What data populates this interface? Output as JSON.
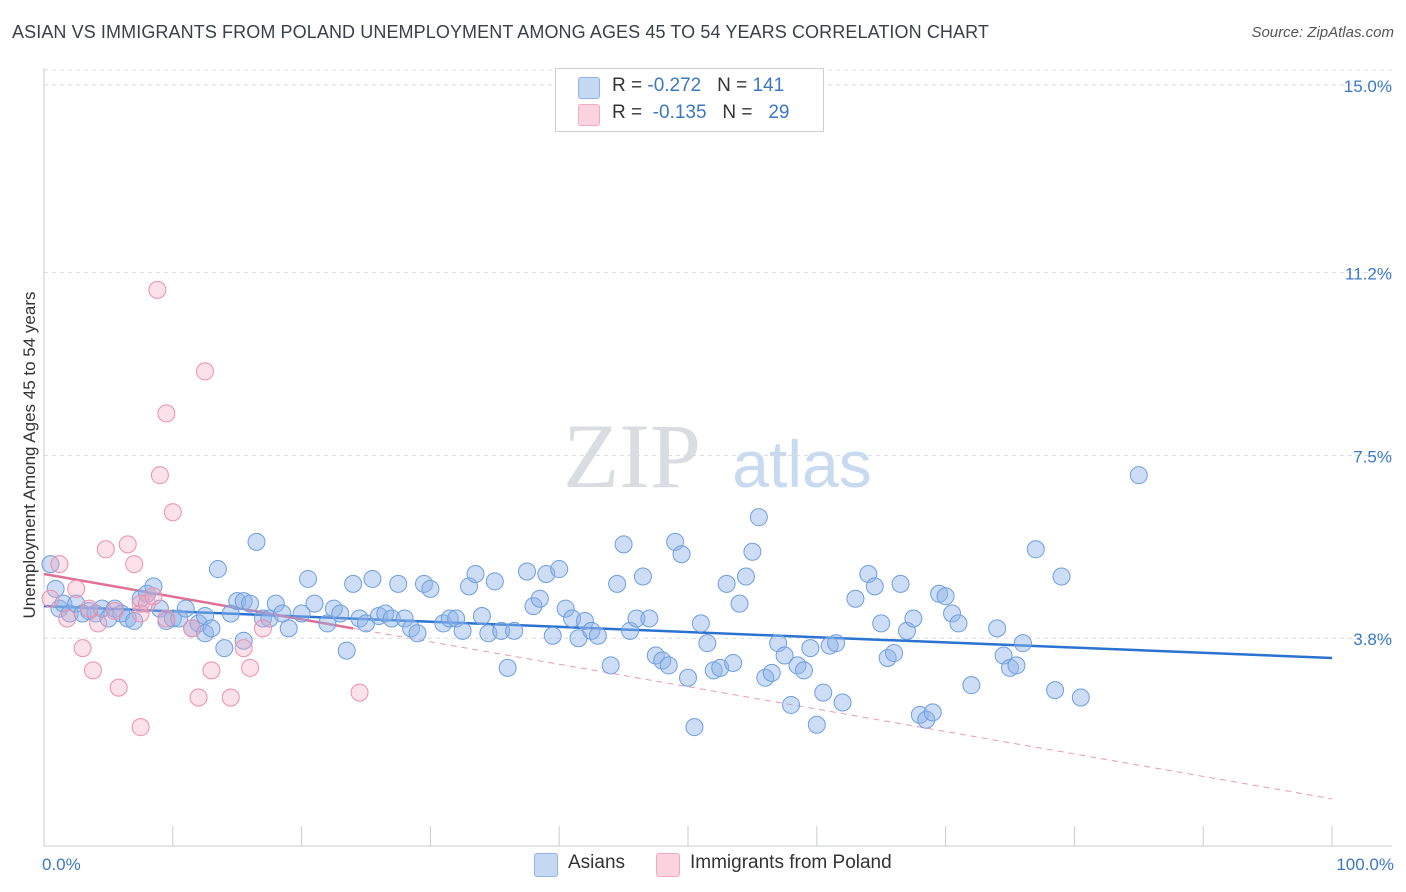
{
  "title": "ASIAN VS IMMIGRANTS FROM POLAND UNEMPLOYMENT AMONG AGES 45 TO 54 YEARS CORRELATION CHART",
  "source": "Source: ZipAtlas.com",
  "watermark": {
    "zip": "ZIP",
    "atlas": "atlas"
  },
  "legend": {
    "rows": [
      {
        "r_label": "R = ",
        "r_value": "-0.272",
        "n_label": "N = ",
        "n_value": "141"
      },
      {
        "r_label": "R = ",
        "r_value": "-0.135",
        "n_label": "N = ",
        "n_value": "29"
      }
    ]
  },
  "chart_data": {
    "type": "scatter",
    "title": "ASIAN VS IMMIGRANTS FROM POLAND UNEMPLOYMENT AMONG AGES 45 TO 54 YEARS CORRELATION CHART",
    "xlabel": "",
    "ylabel": "Unemployment Among Ages 45 to 54 years",
    "xlim": [
      0,
      100
    ],
    "ylim": [
      0,
      15.3
    ],
    "x_tick_labels": [
      "0.0%",
      "100.0%"
    ],
    "y_ticks": [
      {
        "value": 15.0,
        "label": "15.0%"
      },
      {
        "value": 11.2,
        "label": "11.2%"
      },
      {
        "value": 7.5,
        "label": "7.5%"
      },
      {
        "value": 3.8,
        "label": "3.8%"
      }
    ],
    "grid": true,
    "colors": {
      "asians": "#8fb4e8",
      "asians_line": "#2a73d0",
      "poland": "#f4aac0",
      "poland_line": "#e07094",
      "tick_text": "#3b78c4"
    },
    "series": [
      {
        "name": "Asians",
        "trend": {
          "x": [
            0,
            100
          ],
          "y": [
            4.45,
            3.4
          ]
        },
        "points": [
          [
            0.5,
            5.3
          ],
          [
            0.9,
            4.8
          ],
          [
            1.2,
            4.4
          ],
          [
            1.5,
            4.5
          ],
          [
            2.0,
            4.3
          ],
          [
            2.5,
            4.5
          ],
          [
            3.0,
            4.3
          ],
          [
            3.5,
            4.35
          ],
          [
            4.0,
            4.3
          ],
          [
            4.5,
            4.4
          ],
          [
            5.0,
            4.2
          ],
          [
            5.5,
            4.4
          ],
          [
            6.0,
            4.3
          ],
          [
            6.5,
            4.2
          ],
          [
            7.0,
            4.15
          ],
          [
            7.5,
            4.6
          ],
          [
            8.0,
            4.7
          ],
          [
            8.5,
            4.85
          ],
          [
            9.0,
            4.4
          ],
          [
            9.5,
            4.15
          ],
          [
            10.0,
            4.2
          ],
          [
            10.5,
            4.2
          ],
          [
            11.0,
            4.4
          ],
          [
            11.5,
            4.0
          ],
          [
            12.0,
            4.1
          ],
          [
            12.5,
            4.25
          ],
          [
            12.5,
            3.9
          ],
          [
            13.0,
            4.0
          ],
          [
            13.5,
            5.2
          ],
          [
            14.0,
            3.6
          ],
          [
            14.5,
            4.3
          ],
          [
            15.0,
            4.55
          ],
          [
            15.5,
            4.55
          ],
          [
            15.5,
            3.75
          ],
          [
            16.0,
            4.5
          ],
          [
            16.5,
            5.75
          ],
          [
            17.0,
            4.2
          ],
          [
            17.5,
            4.2
          ],
          [
            18.0,
            4.5
          ],
          [
            18.5,
            4.3
          ],
          [
            19.0,
            4.0
          ],
          [
            20.0,
            4.3
          ],
          [
            20.5,
            5.0
          ],
          [
            21.0,
            4.5
          ],
          [
            22.0,
            4.1
          ],
          [
            22.5,
            4.4
          ],
          [
            23.0,
            4.3
          ],
          [
            23.5,
            3.55
          ],
          [
            24.0,
            4.9
          ],
          [
            24.5,
            4.2
          ],
          [
            25.0,
            4.1
          ],
          [
            25.5,
            5.0
          ],
          [
            26.0,
            4.25
          ],
          [
            26.5,
            4.3
          ],
          [
            27.0,
            4.2
          ],
          [
            27.5,
            4.9
          ],
          [
            28.0,
            4.2
          ],
          [
            28.5,
            4.0
          ],
          [
            29.0,
            3.9
          ],
          [
            29.5,
            4.9
          ],
          [
            30.0,
            4.8
          ],
          [
            31.0,
            4.1
          ],
          [
            31.5,
            4.2
          ],
          [
            32.0,
            4.2
          ],
          [
            32.5,
            3.95
          ],
          [
            33.0,
            4.85
          ],
          [
            33.5,
            5.1
          ],
          [
            34.0,
            4.25
          ],
          [
            34.5,
            3.9
          ],
          [
            35.0,
            4.95
          ],
          [
            35.5,
            3.95
          ],
          [
            36.0,
            3.2
          ],
          [
            36.5,
            3.95
          ],
          [
            37.5,
            5.15
          ],
          [
            38.0,
            4.45
          ],
          [
            38.5,
            4.6
          ],
          [
            39.0,
            5.1
          ],
          [
            39.5,
            3.85
          ],
          [
            40.0,
            5.2
          ],
          [
            40.5,
            4.4
          ],
          [
            41.0,
            4.2
          ],
          [
            41.5,
            3.8
          ],
          [
            42.0,
            4.15
          ],
          [
            42.5,
            3.95
          ],
          [
            43.0,
            3.85
          ],
          [
            44.0,
            3.25
          ],
          [
            44.5,
            4.9
          ],
          [
            45.0,
            5.7
          ],
          [
            45.5,
            3.95
          ],
          [
            46.0,
            4.2
          ],
          [
            46.5,
            5.05
          ],
          [
            47.0,
            4.2
          ],
          [
            47.5,
            3.45
          ],
          [
            48.0,
            3.35
          ],
          [
            48.5,
            3.25
          ],
          [
            49.0,
            5.75
          ],
          [
            49.5,
            5.5
          ],
          [
            50.0,
            3.0
          ],
          [
            50.5,
            2.0
          ],
          [
            51.0,
            4.1
          ],
          [
            51.5,
            3.7
          ],
          [
            52.0,
            3.15
          ],
          [
            52.5,
            3.2
          ],
          [
            53.0,
            4.9
          ],
          [
            53.5,
            3.3
          ],
          [
            54.0,
            4.5
          ],
          [
            54.5,
            5.05
          ],
          [
            55.0,
            5.55
          ],
          [
            55.5,
            6.25
          ],
          [
            56.0,
            3.0
          ],
          [
            56.5,
            3.1
          ],
          [
            57.0,
            3.7
          ],
          [
            57.5,
            3.45
          ],
          [
            58.0,
            2.45
          ],
          [
            58.5,
            3.25
          ],
          [
            59.0,
            3.15
          ],
          [
            59.5,
            3.6
          ],
          [
            60.0,
            2.05
          ],
          [
            60.5,
            2.7
          ],
          [
            61.0,
            3.65
          ],
          [
            61.5,
            3.7
          ],
          [
            62.0,
            2.5
          ],
          [
            63.0,
            4.6
          ],
          [
            64.0,
            5.1
          ],
          [
            64.5,
            4.85
          ],
          [
            65.0,
            4.1
          ],
          [
            65.5,
            3.4
          ],
          [
            66.0,
            3.5
          ],
          [
            66.5,
            4.9
          ],
          [
            67.0,
            3.95
          ],
          [
            67.5,
            4.2
          ],
          [
            68.0,
            2.25
          ],
          [
            68.5,
            2.15
          ],
          [
            69.0,
            2.3
          ],
          [
            69.5,
            4.7
          ],
          [
            70.0,
            4.65
          ],
          [
            70.5,
            4.3
          ],
          [
            71.0,
            4.1
          ],
          [
            72.0,
            2.85
          ],
          [
            74.0,
            4.0
          ],
          [
            74.5,
            3.45
          ],
          [
            75.0,
            3.2
          ],
          [
            75.5,
            3.25
          ],
          [
            76.0,
            3.7
          ],
          [
            77.0,
            5.6
          ],
          [
            78.5,
            2.75
          ],
          [
            79.0,
            5.05
          ],
          [
            80.5,
            2.6
          ],
          [
            85.0,
            7.1
          ]
        ]
      },
      {
        "name": "Immigrants from Poland",
        "trend": {
          "x": [
            0,
            24
          ],
          "y": [
            5.1,
            4.0
          ]
        },
        "trend_extension": {
          "x": [
            24,
            100
          ],
          "y": [
            4.0,
            0.55
          ]
        },
        "points": [
          [
            0.5,
            4.6
          ],
          [
            1.2,
            5.3
          ],
          [
            1.8,
            4.2
          ],
          [
            2.5,
            4.8
          ],
          [
            3.0,
            3.6
          ],
          [
            3.5,
            4.4
          ],
          [
            3.8,
            3.15
          ],
          [
            4.2,
            4.1
          ],
          [
            4.8,
            5.6
          ],
          [
            5.5,
            4.35
          ],
          [
            5.8,
            2.8
          ],
          [
            6.5,
            5.7
          ],
          [
            7.0,
            5.3
          ],
          [
            7.5,
            4.5
          ],
          [
            7.5,
            4.3
          ],
          [
            7.5,
            2.0
          ],
          [
            8.0,
            4.5
          ],
          [
            8.5,
            4.65
          ],
          [
            8.8,
            10.85
          ],
          [
            9.0,
            7.1
          ],
          [
            9.5,
            8.35
          ],
          [
            9.5,
            4.2
          ],
          [
            10.0,
            6.35
          ],
          [
            11.5,
            4.0
          ],
          [
            12.0,
            2.6
          ],
          [
            12.5,
            9.2
          ],
          [
            13.0,
            3.15
          ],
          [
            14.5,
            2.6
          ],
          [
            15.5,
            3.6
          ],
          [
            16.0,
            3.2
          ],
          [
            17.0,
            4.0
          ],
          [
            24.5,
            2.7
          ]
        ]
      }
    ]
  },
  "bottom_legend": {
    "asians": "Asians",
    "poland": "Immigrants from Poland"
  }
}
